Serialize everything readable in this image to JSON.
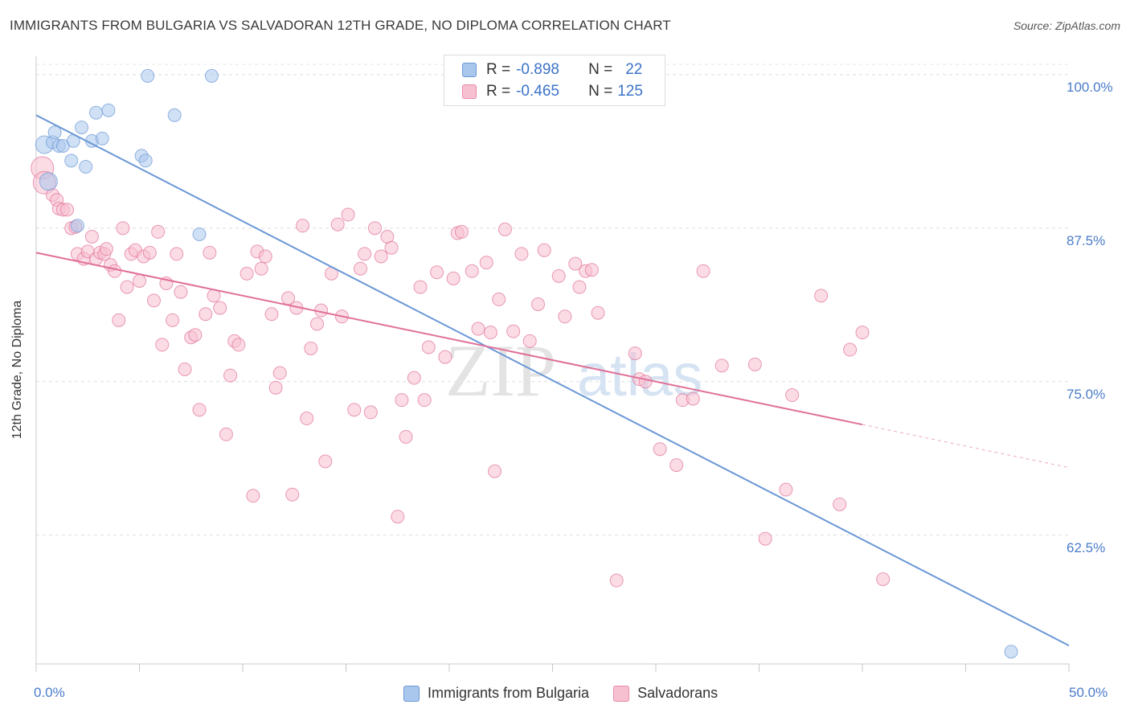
{
  "title": "IMMIGRANTS FROM BULGARIA VS SALVADORAN 12TH GRADE, NO DIPLOMA CORRELATION CHART",
  "source": "Source: ZipAtlas.com",
  "watermark": "ZIPatlas",
  "legend": {
    "r_label": "R =",
    "n_label": "N =",
    "rows": [
      {
        "r": "-0.898",
        "n": "22",
        "color": "#a9c6ec",
        "border": "#6b98d6"
      },
      {
        "r": "-0.465",
        "n": "125",
        "color": "#f7c0d0",
        "border": "#e88aa6"
      }
    ]
  },
  "bottom_legend": [
    "Immigrants from Bulgaria",
    "Salvadorans"
  ],
  "chart_data": {
    "type": "scatter",
    "xlabel": "",
    "ylabel": "12th Grade, No Diploma",
    "xlim": [
      0,
      50
    ],
    "ylim": [
      52,
      101.5
    ],
    "x_tick_labels": [
      "0.0%",
      "50.0%"
    ],
    "y_ticks": [
      62.5,
      75.0,
      87.5,
      100.0
    ],
    "y_tick_labels": [
      "62.5%",
      "75.0%",
      "87.5%",
      "100.0%"
    ],
    "grid": true,
    "series": [
      {
        "name": "Immigrants from Bulgaria",
        "color": "#6b98d6",
        "fill": "#a9c6ec",
        "trend": {
          "x0": 0,
          "y0": 96.7,
          "x1": 50,
          "y1": 53.5
        },
        "points": [
          [
            0.4,
            94.3
          ],
          [
            0.6,
            91.3
          ],
          [
            0.8,
            94.5
          ],
          [
            0.9,
            95.3
          ],
          [
            1.1,
            94.2
          ],
          [
            1.3,
            94.2
          ],
          [
            1.7,
            93.0
          ],
          [
            1.8,
            94.6
          ],
          [
            2.0,
            87.7
          ],
          [
            2.2,
            95.7
          ],
          [
            2.4,
            92.5
          ],
          [
            2.7,
            94.6
          ],
          [
            2.9,
            96.9
          ],
          [
            3.2,
            94.8
          ],
          [
            3.5,
            97.1
          ],
          [
            5.1,
            93.4
          ],
          [
            5.3,
            93.0
          ],
          [
            5.4,
            99.9
          ],
          [
            6.7,
            96.7
          ],
          [
            7.9,
            87.0
          ],
          [
            8.5,
            99.9
          ],
          [
            47.2,
            53.0
          ]
        ]
      },
      {
        "name": "Salvadorans",
        "color": "#e07098",
        "fill": "#f7c0d0",
        "trend": {
          "x0": 0,
          "y0": 85.5,
          "x1": 40,
          "y1": 71.5,
          "x_dash_end": 50,
          "y_dash_end": 68.0
        },
        "points": [
          [
            0.3,
            92.4
          ],
          [
            0.4,
            91.2
          ],
          [
            0.8,
            90.2
          ],
          [
            1.0,
            89.8
          ],
          [
            1.1,
            89.1
          ],
          [
            1.3,
            89.0
          ],
          [
            1.5,
            89.0
          ],
          [
            1.7,
            87.5
          ],
          [
            1.9,
            87.6
          ],
          [
            2.0,
            85.4
          ],
          [
            2.3,
            85.0
          ],
          [
            2.5,
            85.6
          ],
          [
            2.7,
            86.8
          ],
          [
            2.9,
            85.0
          ],
          [
            3.1,
            85.5
          ],
          [
            3.3,
            85.4
          ],
          [
            3.4,
            85.8
          ],
          [
            3.6,
            84.5
          ],
          [
            3.8,
            84.0
          ],
          [
            4.0,
            80.0
          ],
          [
            4.2,
            87.5
          ],
          [
            4.4,
            82.7
          ],
          [
            4.6,
            85.4
          ],
          [
            4.8,
            85.7
          ],
          [
            5.0,
            83.2
          ],
          [
            5.2,
            85.2
          ],
          [
            5.5,
            85.5
          ],
          [
            5.7,
            81.6
          ],
          [
            5.9,
            87.2
          ],
          [
            6.1,
            78.0
          ],
          [
            6.3,
            83.0
          ],
          [
            6.6,
            80.0
          ],
          [
            6.8,
            85.4
          ],
          [
            7.0,
            82.3
          ],
          [
            7.2,
            76.0
          ],
          [
            7.5,
            78.6
          ],
          [
            7.7,
            78.8
          ],
          [
            7.9,
            72.7
          ],
          [
            8.2,
            80.5
          ],
          [
            8.4,
            85.5
          ],
          [
            8.6,
            82.0
          ],
          [
            8.9,
            81.0
          ],
          [
            9.2,
            70.7
          ],
          [
            9.4,
            75.5
          ],
          [
            9.6,
            78.3
          ],
          [
            9.8,
            78.0
          ],
          [
            10.2,
            83.8
          ],
          [
            10.5,
            65.7
          ],
          [
            10.7,
            85.6
          ],
          [
            10.9,
            84.2
          ],
          [
            11.1,
            85.2
          ],
          [
            11.4,
            80.5
          ],
          [
            11.6,
            74.5
          ],
          [
            11.8,
            75.7
          ],
          [
            12.2,
            81.8
          ],
          [
            12.4,
            65.8
          ],
          [
            12.6,
            81.0
          ],
          [
            12.9,
            87.7
          ],
          [
            13.1,
            72.0
          ],
          [
            13.3,
            77.7
          ],
          [
            13.6,
            79.7
          ],
          [
            13.8,
            80.8
          ],
          [
            14.0,
            68.5
          ],
          [
            14.3,
            83.8
          ],
          [
            14.6,
            87.8
          ],
          [
            14.8,
            80.3
          ],
          [
            15.1,
            88.6
          ],
          [
            15.4,
            72.7
          ],
          [
            15.7,
            84.2
          ],
          [
            15.9,
            85.4
          ],
          [
            16.2,
            72.5
          ],
          [
            16.4,
            87.5
          ],
          [
            16.7,
            85.2
          ],
          [
            17.0,
            86.8
          ],
          [
            17.2,
            85.9
          ],
          [
            17.5,
            64.0
          ],
          [
            17.7,
            73.5
          ],
          [
            17.9,
            70.5
          ],
          [
            18.3,
            75.3
          ],
          [
            18.6,
            82.7
          ],
          [
            18.8,
            73.5
          ],
          [
            19.0,
            77.8
          ],
          [
            19.4,
            83.9
          ],
          [
            19.8,
            77.0
          ],
          [
            20.2,
            83.4
          ],
          [
            20.4,
            87.1
          ],
          [
            20.6,
            87.2
          ],
          [
            21.1,
            84.0
          ],
          [
            21.4,
            79.3
          ],
          [
            21.8,
            84.7
          ],
          [
            22.0,
            79.0
          ],
          [
            22.2,
            67.7
          ],
          [
            22.4,
            81.7
          ],
          [
            22.7,
            87.4
          ],
          [
            23.1,
            79.1
          ],
          [
            23.5,
            85.4
          ],
          [
            23.9,
            78.3
          ],
          [
            24.3,
            81.3
          ],
          [
            24.6,
            85.7
          ],
          [
            25.3,
            83.6
          ],
          [
            25.6,
            80.3
          ],
          [
            26.1,
            84.6
          ],
          [
            26.3,
            82.7
          ],
          [
            26.6,
            84.0
          ],
          [
            26.9,
            84.1
          ],
          [
            27.2,
            80.6
          ],
          [
            28.1,
            58.8
          ],
          [
            29.0,
            77.3
          ],
          [
            29.2,
            75.2
          ],
          [
            29.5,
            75.0
          ],
          [
            30.2,
            69.5
          ],
          [
            31.0,
            68.2
          ],
          [
            31.3,
            73.5
          ],
          [
            31.8,
            73.6
          ],
          [
            32.3,
            84.0
          ],
          [
            33.2,
            76.3
          ],
          [
            34.8,
            76.4
          ],
          [
            35.3,
            62.2
          ],
          [
            36.3,
            66.2
          ],
          [
            36.6,
            73.9
          ],
          [
            38.0,
            82.0
          ],
          [
            38.9,
            65.0
          ],
          [
            39.4,
            77.6
          ],
          [
            40.0,
            79.0
          ],
          [
            41.0,
            58.9
          ]
        ]
      }
    ]
  }
}
